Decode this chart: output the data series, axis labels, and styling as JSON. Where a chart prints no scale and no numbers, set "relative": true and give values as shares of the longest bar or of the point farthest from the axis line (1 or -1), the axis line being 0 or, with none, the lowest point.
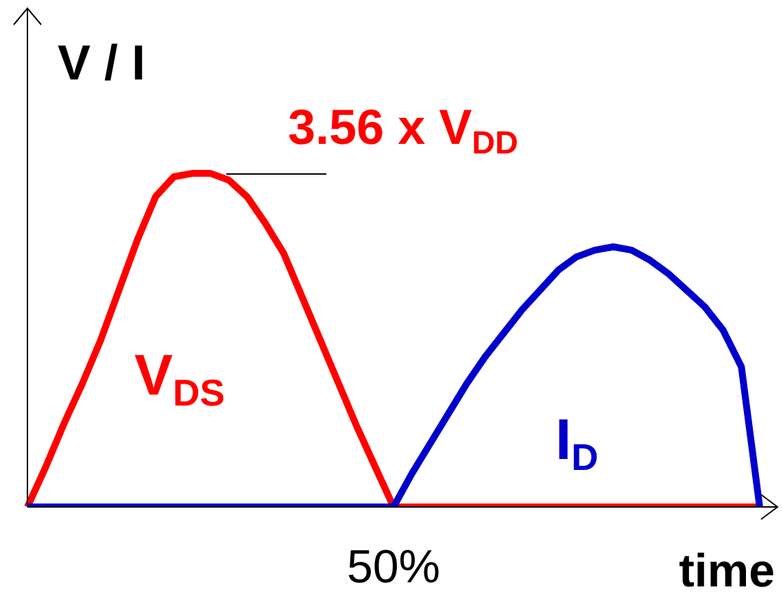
{
  "chart_data": {
    "type": "line",
    "relative": true,
    "ylabel": "V / I",
    "xlabel": "time",
    "grid": false,
    "legend": false,
    "marker": "none",
    "line_style": "solid",
    "annotations": [
      "3.56 x V$_{DD}$",
      "50%"
    ],
    "categories": [
      null,
      null,
      null,
      null,
      null,
      null,
      null,
      null,
      null,
      null,
      null,
      null,
      null,
      null,
      null,
      null,
      null,
      null,
      null,
      null,
      null,
      null,
      null,
      null,
      null,
      null,
      null,
      null,
      null,
      null,
      null,
      null,
      null,
      null,
      null,
      null,
      null,
      null,
      null,
      null,
      null
    ],
    "series": [
      {
        "name": "V$_{DS}$",
        "color": "#ff0000",
        "values": [
          0,
          0.12,
          0.25,
          0.37,
          0.5,
          0.65,
          0.8,
          0.93,
          0.99,
          1,
          1,
          0.98,
          0.93,
          0.85,
          0.76,
          0.63,
          0.5,
          0.37,
          0.24,
          0.12,
          0,
          0,
          0,
          0,
          0,
          0,
          0,
          0,
          0,
          0,
          0,
          0,
          0,
          0,
          0,
          0,
          0,
          0,
          0,
          0,
          0
        ]
      },
      {
        "name": "I$_{D}$",
        "color": "#0000cc",
        "values": [
          0,
          0,
          0,
          0,
          0,
          0,
          0,
          0,
          0,
          0,
          0,
          0,
          0,
          0,
          0,
          0,
          0,
          0,
          0,
          0,
          0,
          0.1,
          0.19,
          0.28,
          0.37,
          0.45,
          0.52,
          0.59,
          0.65,
          0.71,
          0.75,
          0.77,
          0.78,
          0.77,
          0.74,
          0.7,
          0.65,
          0.6,
          0.53,
          0.42,
          0
        ]
      }
    ]
  }
}
